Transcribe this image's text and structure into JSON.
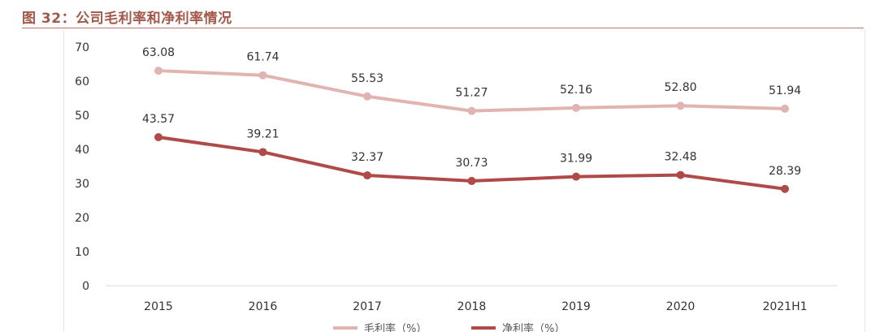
{
  "header": {
    "title": "图 32：公司毛利率和净利率情况"
  },
  "chart_data": {
    "type": "line",
    "categories": [
      "2015",
      "2016",
      "2017",
      "2018",
      "2019",
      "2020",
      "2021H1"
    ],
    "series": [
      {
        "name": "毛利率（%）",
        "values": [
          63.08,
          61.74,
          55.53,
          51.27,
          52.16,
          52.8,
          51.94
        ],
        "color": "#e0b4b0"
      },
      {
        "name": "净利率（%）",
        "values": [
          43.57,
          39.21,
          32.37,
          30.73,
          31.99,
          32.48,
          28.39
        ],
        "color": "#b04a48"
      }
    ],
    "data_labels": {
      "gross": [
        "63.08",
        "61.74",
        "55.53",
        "51.27",
        "52.16",
        "52.80",
        "51.94"
      ],
      "net": [
        "43.57",
        "39.21",
        "32.37",
        "30.73",
        "31.99",
        "32.48",
        "28.39"
      ]
    },
    "yticks": [
      "0",
      "10",
      "20",
      "30",
      "40",
      "50",
      "60",
      "70"
    ],
    "ylim": [
      0,
      70
    ],
    "xlabel": "",
    "ylabel": "",
    "grid": false,
    "legend": "bottom"
  }
}
